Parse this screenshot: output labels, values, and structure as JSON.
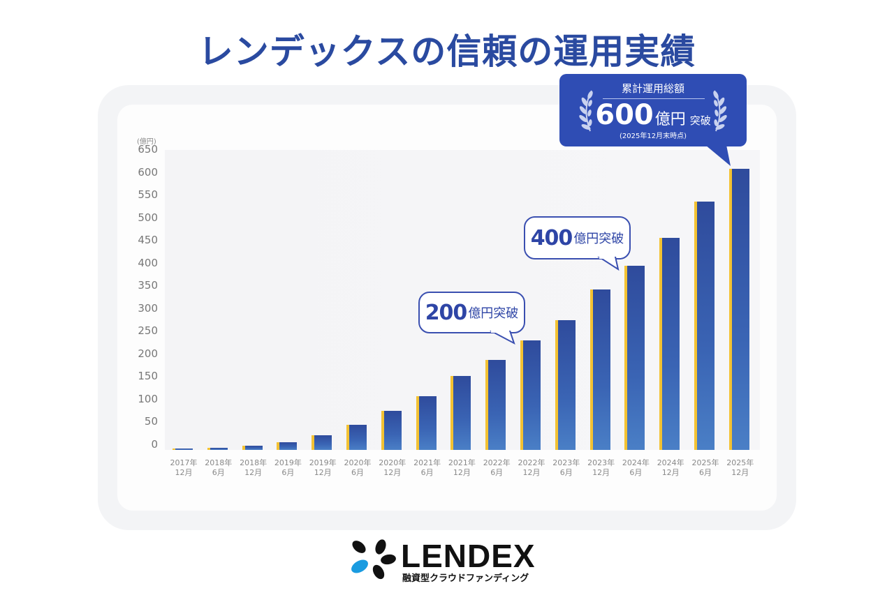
{
  "title": "レンデックスの信頼の運用実績",
  "chart_data": {
    "type": "bar",
    "title": "レンデックスの信頼の運用実績",
    "ylabel": "(億円)",
    "xlabel": "",
    "ylim": [
      0,
      650
    ],
    "yticks": [
      0,
      50,
      100,
      150,
      200,
      250,
      300,
      350,
      400,
      450,
      500,
      550,
      600,
      650
    ],
    "grid": false,
    "categories": [
      "2017年12月",
      "2018年6月",
      "2018年12月",
      "2019年6月",
      "2019年12月",
      "2020年6月",
      "2020年12月",
      "2021年6月",
      "2021年12月",
      "2022年6月",
      "2022年12月",
      "2023年6月",
      "2023年12月",
      "2024年6月",
      "2024年12月",
      "2025年6月",
      "2025年12月"
    ],
    "category_lines": [
      [
        "2017年",
        "12月"
      ],
      [
        "2018年",
        "6月"
      ],
      [
        "2018年",
        "12月"
      ],
      [
        "2019年",
        "6月"
      ],
      [
        "2019年",
        "12月"
      ],
      [
        "2020年",
        "6月"
      ],
      [
        "2020年",
        "12月"
      ],
      [
        "2021年",
        "6月"
      ],
      [
        "2021年",
        "12月"
      ],
      [
        "2022年",
        "6月"
      ],
      [
        "2022年",
        "12月"
      ],
      [
        "2023年",
        "6月"
      ],
      [
        "2023年",
        "12月"
      ],
      [
        "2024年",
        "6月"
      ],
      [
        "2024年",
        "12月"
      ],
      [
        "2025年",
        "6月"
      ],
      [
        "2025年",
        "12月"
      ]
    ],
    "values": [
      1,
      5,
      9,
      17,
      33,
      56,
      86,
      118,
      163,
      198,
      241,
      286,
      354,
      405,
      467,
      547,
      620
    ],
    "annotations": [
      {
        "near": "2022年12月",
        "text": "200億円突破"
      },
      {
        "near": "2024年6月",
        "text": "400億円突破"
      },
      {
        "near": "2025年12月",
        "text": "累計運用総額 600億円 突破 (2025年12月末時点)"
      }
    ],
    "colors": {
      "bar": "#3a5aae",
      "bar_side": "#f3c233"
    }
  },
  "y_unit": "(億円)",
  "callouts": {
    "c200": {
      "num": "200",
      "unit": "億円突破"
    },
    "c400": {
      "num": "400",
      "unit": "億円突破"
    },
    "c600": {
      "label": "累計運用総額",
      "num": "600",
      "unit": "億円",
      "suffix": "突破",
      "note": "(2025年12月末時点)"
    }
  },
  "logo": {
    "word": "LENDEX",
    "sub": "融資型クラウドファンディング"
  }
}
